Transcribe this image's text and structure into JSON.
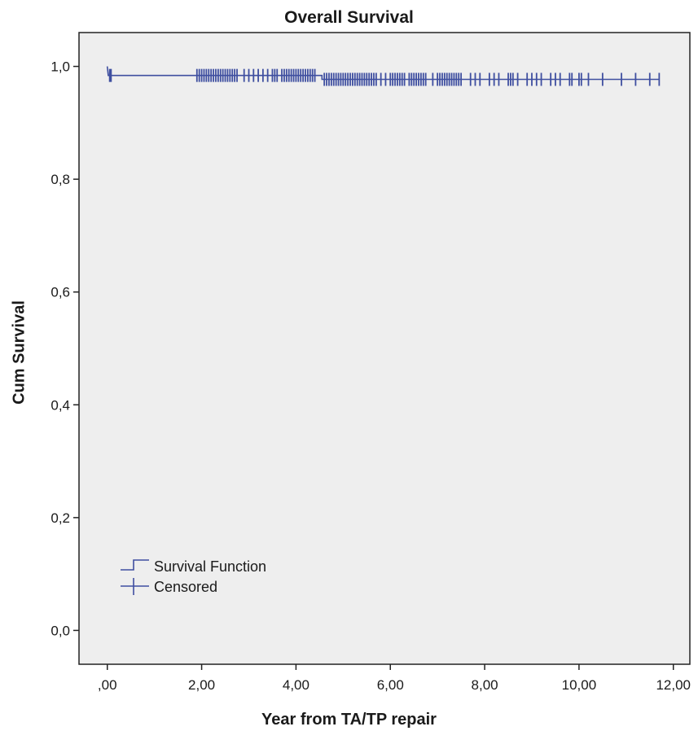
{
  "chart_data": {
    "type": "line",
    "title": "Overall Survival",
    "xlabel": "Year from TA/TP repair",
    "ylabel": "Cum Survival",
    "x_ticks": [
      0,
      2,
      4,
      6,
      8,
      10,
      12
    ],
    "x_tick_labels": [
      ",00",
      "2,00",
      "4,00",
      "6,00",
      "8,00",
      "10,00",
      "12,00"
    ],
    "y_ticks": [
      0,
      0.2,
      0.4,
      0.6,
      0.8,
      1.0
    ],
    "y_tick_labels": [
      "0,0",
      "0,2",
      "0,4",
      "0,6",
      "0,8",
      "1,0"
    ],
    "xlim": [
      -0.6,
      12.35
    ],
    "ylim": [
      -0.06,
      1.06
    ],
    "grid": false,
    "legend_position": "bottom-left",
    "legend": [
      {
        "label": "Survival Function",
        "symbol": "step"
      },
      {
        "label": "Censored",
        "symbol": "plus"
      }
    ],
    "series": [
      {
        "name": "Survival Function",
        "step_points": [
          [
            0,
            1.0
          ],
          [
            0.02,
            0.984
          ],
          [
            4.55,
            0.984
          ],
          [
            4.55,
            0.977
          ],
          [
            11.7,
            0.977
          ]
        ]
      },
      {
        "name": "Censored",
        "censored_x": [
          0.05,
          0.08,
          1.9,
          1.95,
          2.0,
          2.05,
          2.1,
          2.15,
          2.2,
          2.25,
          2.3,
          2.35,
          2.4,
          2.45,
          2.5,
          2.55,
          2.6,
          2.65,
          2.7,
          2.75,
          2.9,
          3.0,
          3.1,
          3.2,
          3.3,
          3.4,
          3.5,
          3.55,
          3.6,
          3.7,
          3.75,
          3.8,
          3.85,
          3.9,
          3.95,
          4.0,
          4.05,
          4.1,
          4.15,
          4.2,
          4.25,
          4.3,
          4.35,
          4.4,
          4.6,
          4.65,
          4.7,
          4.75,
          4.8,
          4.85,
          4.9,
          4.95,
          5.0,
          5.05,
          5.1,
          5.15,
          5.2,
          5.25,
          5.3,
          5.35,
          5.4,
          5.45,
          5.5,
          5.55,
          5.6,
          5.65,
          5.7,
          5.8,
          5.9,
          6.0,
          6.05,
          6.1,
          6.15,
          6.2,
          6.25,
          6.3,
          6.4,
          6.45,
          6.5,
          6.55,
          6.6,
          6.65,
          6.7,
          6.75,
          6.9,
          7.0,
          7.05,
          7.1,
          7.15,
          7.2,
          7.25,
          7.3,
          7.35,
          7.4,
          7.45,
          7.5,
          7.7,
          7.8,
          7.9,
          8.1,
          8.2,
          8.3,
          8.5,
          8.55,
          8.6,
          8.7,
          8.9,
          9.0,
          9.1,
          9.2,
          9.4,
          9.5,
          9.6,
          9.8,
          9.85,
          10.0,
          10.05,
          10.2,
          10.5,
          10.9,
          11.2,
          11.5,
          11.7
        ]
      }
    ]
  },
  "colors": {
    "series": "#3f4fa0",
    "plot_background": "#eeeeee",
    "axis": "#222222",
    "text": "#1a1a1a"
  }
}
